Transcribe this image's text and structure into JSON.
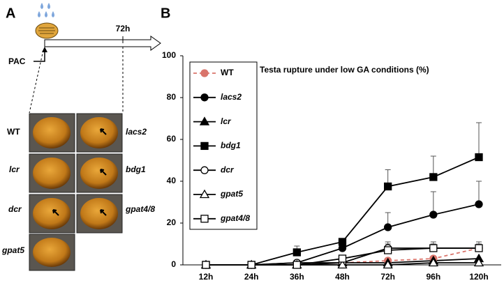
{
  "panel_a": {
    "letter": "A",
    "time_label": "72h",
    "treatment": "PAC",
    "photos": [
      "WT",
      "lacs2",
      "lcr",
      "bdg1",
      "dcr",
      "gpat4/8",
      "gpat5"
    ]
  },
  "chart_data": {
    "type": "line",
    "letter": "B",
    "title": "Testa rupture under low GA conditions (%)",
    "categories": [
      "12h",
      "24h",
      "36h",
      "48h",
      "72h",
      "96h",
      "120h"
    ],
    "ylim": [
      0,
      100
    ],
    "yticks": [
      0,
      20,
      40,
      60,
      80,
      100
    ],
    "series": [
      {
        "name": "WT",
        "color": "#d9746b",
        "marker": "circle",
        "fill": "#d9746b",
        "dash": true,
        "values": [
          0,
          0,
          0,
          1,
          2,
          3,
          8
        ],
        "errors": [
          0,
          0,
          0,
          0,
          0,
          0,
          0
        ]
      },
      {
        "name": "lacs2",
        "color": "#000000",
        "marker": "circle",
        "fill": "#000000",
        "dash": false,
        "values": [
          0,
          0,
          1,
          8,
          18,
          24,
          29
        ],
        "errors": [
          0,
          0,
          0,
          1,
          7,
          11,
          11
        ]
      },
      {
        "name": "lcr",
        "color": "#000000",
        "marker": "triangle",
        "fill": "#000000",
        "dash": false,
        "values": [
          0,
          0,
          0,
          1,
          1,
          2,
          3
        ],
        "errors": [
          0,
          0,
          0,
          0,
          0,
          0,
          0
        ]
      },
      {
        "name": "bdg1",
        "color": "#000000",
        "marker": "square",
        "fill": "#000000",
        "dash": false,
        "values": [
          0,
          0,
          6,
          11,
          37.5,
          42,
          51.5
        ],
        "errors": [
          0,
          0,
          3,
          1,
          8,
          10,
          16.5
        ]
      },
      {
        "name": "dcr",
        "color": "#000000",
        "marker": "circle",
        "fill": "#ffffff",
        "dash": false,
        "values": [
          0,
          0,
          1,
          1,
          8,
          8,
          8
        ],
        "errors": [
          0,
          0,
          0,
          0,
          3,
          2,
          2
        ]
      },
      {
        "name": "gpat5",
        "color": "#000000",
        "marker": "triangle",
        "fill": "#ffffff",
        "dash": false,
        "values": [
          0,
          0,
          0,
          0,
          0,
          1,
          1
        ],
        "errors": [
          0,
          0,
          0,
          0,
          0,
          0,
          0
        ]
      },
      {
        "name": "gpat4/8",
        "color": "#000000",
        "marker": "square",
        "fill": "#ffffff",
        "dash": false,
        "values": [
          0,
          0,
          0,
          3,
          7,
          8,
          8
        ],
        "errors": [
          0,
          0,
          0,
          1,
          3,
          3,
          3
        ]
      }
    ]
  }
}
